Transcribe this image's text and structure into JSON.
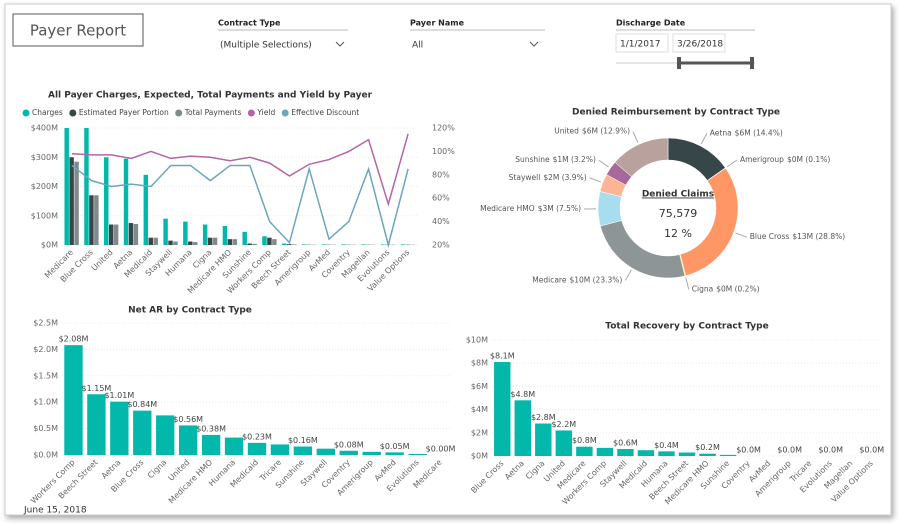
{
  "header": {
    "title": "Payer Report"
  },
  "filters": {
    "contract_type": {
      "label": "Contract Type",
      "value": "(Multiple Selections)"
    },
    "payer_name": {
      "label": "Payer Name",
      "value": "All"
    },
    "discharge_date": {
      "label": "Discharge Date",
      "start": "1/1/2017",
      "end": "3/26/2018"
    }
  },
  "footer": {
    "date": "June 15, 2018"
  },
  "chart_data": [
    {
      "type": "combo",
      "title": "All Payer Charges, Expected, Total Payments and Yield by Payer",
      "categories": [
        "Medicare",
        "Blue Cross",
        "United",
        "Aetna",
        "Medicaid",
        "Staywell",
        "Humana",
        "Cigna",
        "Medicare HMO",
        "Sunshine",
        "Workers Comp",
        "Beech Street",
        "Amerigroup",
        "AvMed",
        "Coventry",
        "Magellan",
        "Evolutions",
        "Value Options"
      ],
      "ylim": [
        0,
        400
      ],
      "yticks": [
        {
          "value": 0,
          "label": "$0M"
        },
        {
          "value": 100,
          "label": "$100M"
        },
        {
          "value": 200,
          "label": "$200M"
        },
        {
          "value": 300,
          "label": "$300M"
        },
        {
          "value": 400,
          "label": "$400M"
        }
      ],
      "y2lim": [
        20,
        120
      ],
      "y2ticks": [
        {
          "value": 20,
          "label": "20%"
        },
        {
          "value": 40,
          "label": "40%"
        },
        {
          "value": 60,
          "label": "60%"
        },
        {
          "value": 80,
          "label": "80%"
        },
        {
          "value": 100,
          "label": "100%"
        },
        {
          "value": 120,
          "label": "120%"
        }
      ],
      "series": [
        {
          "name": "Charges",
          "color": "#01b8aa",
          "mark": "bar",
          "values": [
            400,
            400,
            300,
            295,
            240,
            90,
            80,
            70,
            65,
            45,
            30,
            5,
            2,
            2,
            2,
            2,
            2,
            2
          ]
        },
        {
          "name": "Estimated Payer Portion",
          "color": "#374649",
          "mark": "bar",
          "values": [
            300,
            170,
            70,
            75,
            25,
            15,
            12,
            25,
            20,
            5,
            25,
            3,
            1,
            1,
            1,
            1,
            1,
            1
          ]
        },
        {
          "name": "Total Payments",
          "color": "#7f8a8c",
          "mark": "bar",
          "values": [
            285,
            170,
            70,
            72,
            25,
            12,
            10,
            25,
            20,
            4,
            20,
            2,
            1,
            1,
            1,
            1,
            1,
            1
          ]
        },
        {
          "name": "Yield",
          "color": "#b565a7",
          "mark": "line",
          "axis": "y2",
          "values": [
            98,
            97,
            97,
            94,
            100,
            94,
            96,
            95,
            92,
            95,
            90,
            79,
            89,
            93,
            100,
            110,
            55,
            115
          ]
        },
        {
          "name": "Effective Discount",
          "color": "#6aa6bd",
          "mark": "line",
          "axis": "y2",
          "values": [
            88,
            75,
            70,
            72,
            70,
            88,
            88,
            75,
            88,
            88,
            40,
            22,
            85,
            25,
            40,
            85,
            20,
            85
          ]
        }
      ]
    },
    {
      "type": "pie",
      "title": "Denied Reimbursement by Contract Type",
      "center_title": "Denied Claims",
      "center_value": "75,579",
      "center_percent": "12 %",
      "categories": [
        "Aetna",
        "Amerigroup",
        "Blue Cross",
        "Cigna",
        "Medicare",
        "Medicare HMO",
        "Staywell",
        "Sunshine",
        "United"
      ],
      "values": [
        14.4,
        0.1,
        28.8,
        0.2,
        23.3,
        7.5,
        3.9,
        3.2,
        12.9
      ],
      "value_labels": [
        "$6M (14.4%)",
        "$0M (0.1%)",
        "$13M (28.8%)",
        "$0M (0.2%)",
        "$10M (23.3%)",
        "$3M (7.5%)",
        "$2M (3.9%)",
        "$1M (3.2%)",
        "$6M (12.9%)"
      ],
      "colors": [
        "#374649",
        "#01b8aa",
        "#fe9666",
        "#f2c80f",
        "#8d9596",
        "#a8ddef",
        "#fbb595",
        "#a66999",
        "#b9a29d"
      ]
    },
    {
      "type": "bar",
      "title": "Net AR  by Contract Type",
      "color": "#01b8aa",
      "categories": [
        "Workers Comp",
        "Beech Street",
        "Aetna",
        "Blue Cross",
        "Cigna",
        "United",
        "Medicare HMO",
        "Humana",
        "Medicaid",
        "Tricare",
        "Sunshine",
        "Staywell",
        "Coventry",
        "Amerigroup",
        "AvMed",
        "Evolutions",
        "Medicare"
      ],
      "values": [
        2.08,
        1.15,
        1.01,
        0.84,
        0.75,
        0.56,
        0.38,
        0.33,
        0.23,
        0.2,
        0.16,
        0.12,
        0.08,
        0.06,
        0.05,
        0.02,
        0.0
      ],
      "value_labels": [
        "$2.08M",
        "$1.15M",
        "$1.01M",
        "$0.84M",
        null,
        "$0.56M",
        "$0.38M",
        null,
        "$0.23M",
        null,
        "$0.16M",
        null,
        "$0.08M",
        null,
        "$0.05M",
        null,
        "$0.00M"
      ],
      "ylim": [
        0,
        2.5
      ],
      "yticks": [
        {
          "value": 0,
          "label": "$0.0M"
        },
        {
          "value": 0.5,
          "label": "$0.5M"
        },
        {
          "value": 1,
          "label": "$1.0M"
        },
        {
          "value": 1.5,
          "label": "$1.5M"
        },
        {
          "value": 2,
          "label": "$2.0M"
        },
        {
          "value": 2.5,
          "label": "$2.5M"
        }
      ]
    },
    {
      "type": "bar",
      "title": "Total Recovery by Contract Type",
      "color": "#01b8aa",
      "categories": [
        "Blue Cross",
        "Aetna",
        "Cigna",
        "United",
        "Medicare",
        "Workers Comp",
        "Staywell",
        "Medicaid",
        "Humana",
        "Beech Street",
        "Medicare HMO",
        "Sunshine",
        "Coventry",
        "AvMed",
        "Amerigroup",
        "Tricare",
        "Evolutions",
        "Magellan",
        "Value Options"
      ],
      "values": [
        8.1,
        4.8,
        2.8,
        2.2,
        0.8,
        0.7,
        0.6,
        0.5,
        0.4,
        0.3,
        0.2,
        0.1,
        0.0,
        0.0,
        0.0,
        0.0,
        0.0,
        0.0,
        0.0
      ],
      "value_labels": [
        "$8.1M",
        "$4.8M",
        "$2.8M",
        "$2.2M",
        "$0.8M",
        null,
        "$0.6M",
        null,
        "$0.4M",
        null,
        "$0.2M",
        null,
        "$0.0M",
        null,
        "$0.0M",
        null,
        "$0.0M",
        null,
        "$0.0M"
      ],
      "ylim": [
        0,
        10
      ],
      "yticks": [
        {
          "value": 0,
          "label": "$0M"
        },
        {
          "value": 2,
          "label": "$2M"
        },
        {
          "value": 4,
          "label": "$4M"
        },
        {
          "value": 6,
          "label": "$6M"
        },
        {
          "value": 8,
          "label": "$8M"
        },
        {
          "value": 10,
          "label": "$10M"
        }
      ]
    }
  ]
}
